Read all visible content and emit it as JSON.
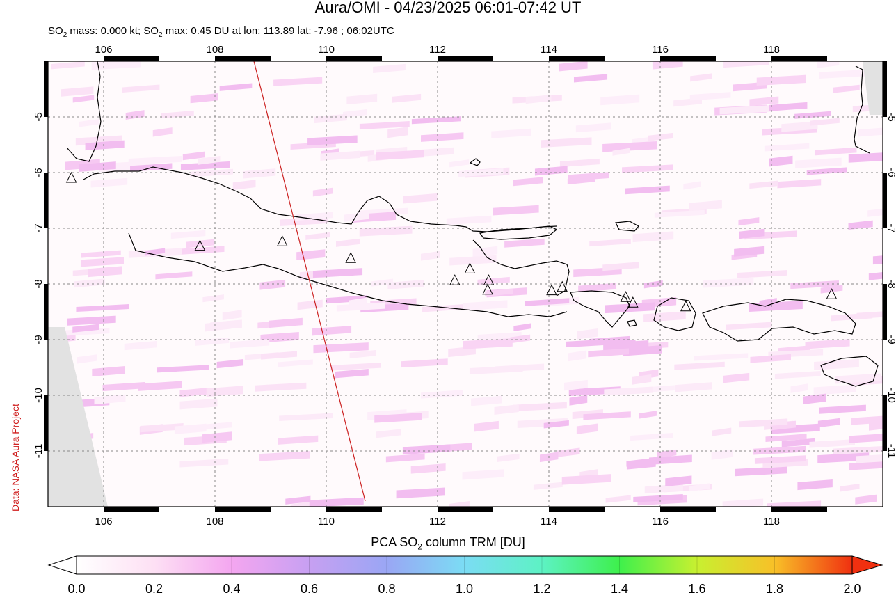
{
  "title": "Aura/OMI - 04/23/2025 06:01-07:42 UT",
  "subtitle": {
    "p1": "SO",
    "sub1": "2",
    "p2": " mass: 0.000 kt; SO",
    "sub2": "2",
    "p3": " max: 0.45 DU at lon: 113.89 lat: -7.96 ; 06:02UTC"
  },
  "credit": "Data: NASA Aura Project",
  "map": {
    "lon_range": [
      105,
      120
    ],
    "lat_range": [
      -12,
      -4
    ],
    "lon_ticks": [
      "106",
      "108",
      "110",
      "112",
      "114",
      "116",
      "118"
    ],
    "lat_ticks": [
      "-5",
      "-6",
      "-7",
      "-8",
      "-9",
      "-10",
      "-11"
    ],
    "grid": "dashed"
  },
  "colorbar": {
    "title_p1": "PCA SO",
    "title_sub": "2",
    "title_p2": " column TRM [DU]",
    "ticks": [
      "0.0",
      "0.2",
      "0.4",
      "0.6",
      "0.8",
      "1.0",
      "1.2",
      "1.4",
      "1.6",
      "1.8",
      "2.0"
    ],
    "colors": [
      "#ffffff",
      "#fde0f4",
      "#f4a6f0",
      "#c7a0f2",
      "#9aa6f4",
      "#7bdcf4",
      "#5df2c4",
      "#3ef04c",
      "#c8f030",
      "#f8c028",
      "#f03010"
    ]
  },
  "volcanoes": [
    {
      "lon": 105.42,
      "lat": -6.1
    },
    {
      "lon": 107.73,
      "lat": -7.32
    },
    {
      "lon": 109.21,
      "lat": -7.24
    },
    {
      "lon": 110.44,
      "lat": -7.54
    },
    {
      "lon": 112.31,
      "lat": -7.94
    },
    {
      "lon": 112.58,
      "lat": -7.73
    },
    {
      "lon": 112.92,
      "lat": -7.94
    },
    {
      "lon": 112.9,
      "lat": -8.11
    },
    {
      "lon": 114.05,
      "lat": -8.12
    },
    {
      "lon": 114.24,
      "lat": -8.06
    },
    {
      "lon": 115.38,
      "lat": -8.24
    },
    {
      "lon": 115.51,
      "lat": -8.34
    },
    {
      "lon": 116.46,
      "lat": -8.41
    },
    {
      "lon": 119.08,
      "lat": -8.19
    }
  ],
  "track_line": {
    "from": {
      "lon": 108.7,
      "lat": -4.0
    },
    "to": {
      "lon": 110.7,
      "lat": -11.9
    },
    "color": "#cc2222"
  }
}
